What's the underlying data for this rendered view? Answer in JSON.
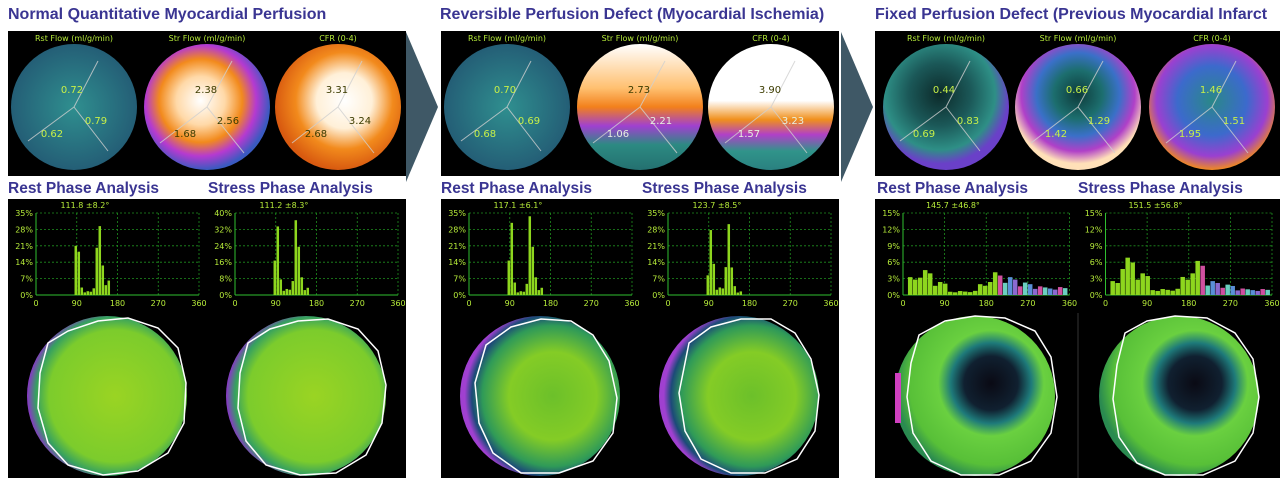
{
  "sections": [
    {
      "title": "Normal Quantitative Myocardial Perfusion",
      "maps": [
        {
          "label": "Rst Flow (ml/g/min)",
          "values": [
            "0.72",
            "0.62",
            "0.79"
          ]
        },
        {
          "label": "Str Flow (ml/g/min)",
          "values": [
            "2.38",
            "1.68",
            "2.56"
          ]
        },
        {
          "label": "CFR (0-4)",
          "values": [
            "3.31",
            "2.68",
            "3.24"
          ]
        }
      ],
      "rest": {
        "heading": "Rest Phase Analysis",
        "stat": "111.8 ±8.2°",
        "yticks": [
          "35%",
          "28%",
          "21%",
          "14%",
          "7%",
          "0%"
        ],
        "xticks": [
          "0",
          "90",
          "180",
          "270",
          "360"
        ]
      },
      "stress": {
        "heading": "Stress Phase Analysis",
        "stat": "111.2 ±8.3°",
        "yticks": [
          "40%",
          "32%",
          "24%",
          "16%",
          "8%",
          "0%"
        ],
        "xticks": [
          "0",
          "90",
          "180",
          "270",
          "360"
        ]
      }
    },
    {
      "title": "Reversible Perfusion Defect (Myocardial Ischemia)",
      "maps": [
        {
          "label": "Rst Flow (ml/g/min)",
          "values": [
            "0.70",
            "0.68",
            "0.69"
          ]
        },
        {
          "label": "Str Flow (ml/g/min)",
          "values": [
            "2.73",
            "1.06",
            "2.21"
          ]
        },
        {
          "label": "CFR (0-4)",
          "values": [
            "3.90",
            "1.57",
            "3.23"
          ]
        }
      ],
      "rest": {
        "heading": "Rest Phase Analysis",
        "stat": "117.1 ±6.1°",
        "yticks": [
          "35%",
          "28%",
          "21%",
          "14%",
          "7%",
          "0%"
        ],
        "xticks": [
          "0",
          "90",
          "180",
          "270",
          "360"
        ]
      },
      "stress": {
        "heading": "Stress Phase Analysis",
        "stat": "123.7 ±8.5°",
        "yticks": [
          "35%",
          "28%",
          "21%",
          "14%",
          "7%",
          "0%"
        ],
        "xticks": [
          "0",
          "90",
          "180",
          "270",
          "360"
        ]
      }
    },
    {
      "title": "Fixed Perfusion Defect (Previous Myocardial Infarct",
      "maps": [
        {
          "label": "Rst Flow (ml/g/min)",
          "values": [
            "0.44",
            "0.69",
            "0.83"
          ]
        },
        {
          "label": "Str Flow (ml/g/min)",
          "values": [
            "0.66",
            "1.42",
            "1.29"
          ]
        },
        {
          "label": "CFR (0-4)",
          "values": [
            "1.46",
            "1.95",
            "1.51"
          ]
        }
      ],
      "rest": {
        "heading": "Rest Phase Analysis",
        "stat": "145.7 ±46.8°",
        "yticks": [
          "15%",
          "12%",
          "9%",
          "6%",
          "3%",
          "0%"
        ],
        "xticks": [
          "0",
          "90",
          "180",
          "270",
          "360"
        ]
      },
      "stress": {
        "heading": "Stress Phase Analysis",
        "stat": "151.5 ±56.8°",
        "yticks": [
          "15%",
          "12%",
          "9%",
          "6%",
          "3%",
          "0%"
        ],
        "xticks": [
          "0",
          "90",
          "180",
          "270",
          "360"
        ]
      }
    }
  ],
  "colors": {
    "heading": "#3a3592",
    "arrow": "#3f5866",
    "grid": "#1f8f1f",
    "bars": "#8ed61e",
    "label": "#b8ee3a"
  }
}
